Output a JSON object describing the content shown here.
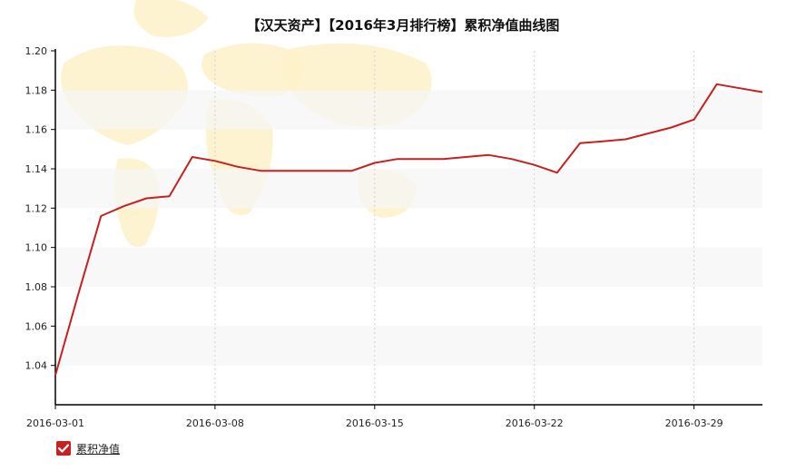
{
  "chart_data": {
    "type": "line",
    "title": "【汉天资产】【2016年3月排行榜】累积净值曲线图",
    "xlabel": "",
    "ylabel": "",
    "x_ticks": [
      "2016-03-01",
      "2016-03-08",
      "2016-03-15",
      "2016-03-22",
      "2016-03-29"
    ],
    "x": [
      "2016-03-01",
      "2016-03-02",
      "2016-03-03",
      "2016-03-04",
      "2016-03-05",
      "2016-03-06",
      "2016-03-07",
      "2016-03-08",
      "2016-03-09",
      "2016-03-10",
      "2016-03-11",
      "2016-03-12",
      "2016-03-13",
      "2016-03-14",
      "2016-03-15",
      "2016-03-16",
      "2016-03-17",
      "2016-03-18",
      "2016-03-19",
      "2016-03-20",
      "2016-03-21",
      "2016-03-22",
      "2016-03-23",
      "2016-03-24",
      "2016-03-25",
      "2016-03-26",
      "2016-03-27",
      "2016-03-28",
      "2016-03-29",
      "2016-03-30",
      "2016-03-31",
      "2016-04-01"
    ],
    "series": [
      {
        "name": "累积净值",
        "x": [
          "2016-03-01",
          "2016-03-02",
          "2016-03-03",
          "2016-03-04",
          "2016-03-05",
          "2016-03-06",
          "2016-03-07",
          "2016-03-08",
          "2016-03-09",
          "2016-03-10",
          "2016-03-11",
          "2016-03-12",
          "2016-03-13",
          "2016-03-14",
          "2016-03-15",
          "2016-03-16",
          "2016-03-17",
          "2016-03-18",
          "2016-03-19",
          "2016-03-20",
          "2016-03-21",
          "2016-03-22",
          "2016-03-23",
          "2016-03-24",
          "2016-03-25",
          "2016-03-26",
          "2016-03-27",
          "2016-03-28",
          "2016-03-29",
          "2016-03-30",
          "2016-03-31",
          "2016-04-01"
        ],
        "values": [
          1.035,
          1.076,
          1.116,
          1.121,
          1.125,
          1.126,
          1.146,
          1.144,
          1.141,
          1.139,
          1.139,
          1.139,
          1.139,
          1.139,
          1.143,
          1.145,
          1.145,
          1.145,
          1.146,
          1.147,
          1.145,
          1.142,
          1.138,
          1.153,
          1.154,
          1.155,
          1.158,
          1.161,
          1.165,
          1.183,
          1.181,
          1.179
        ],
        "color": "#c62121"
      }
    ],
    "y_ticks": [
      1.04,
      1.06,
      1.08,
      1.1,
      1.12,
      1.14,
      1.16,
      1.18,
      1.2
    ],
    "y_tick_labels": [
      "1.04",
      "1.06",
      "1.08",
      "1.10",
      "1.12",
      "1.14",
      "1.16",
      "1.18",
      "1.20"
    ],
    "ylim": [
      1.02,
      1.2
    ],
    "xlim": [
      "2016-03-01",
      "2016-04-01"
    ],
    "grid": true,
    "legend_position": "bottom-left"
  }
}
